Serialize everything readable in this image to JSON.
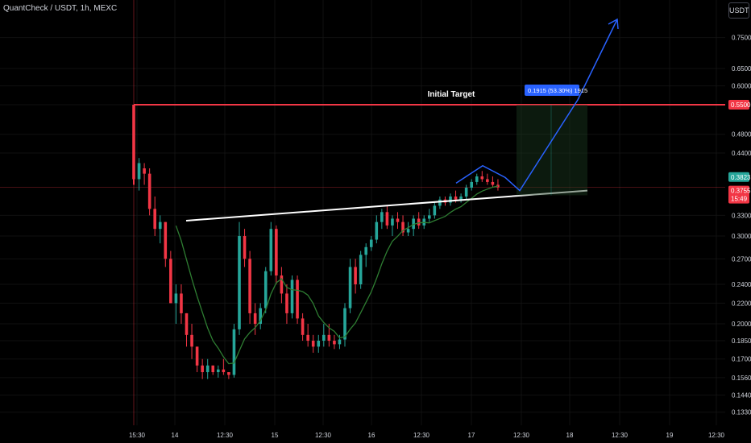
{
  "header": {
    "title": "QuantCheck / USDT, 1h, MEXC",
    "currency": "USDT"
  },
  "colors": {
    "up": "#26a69a",
    "down": "#f23645",
    "ma": "#2e7d32",
    "arrow": "#2962ff",
    "resistance": "#f23645",
    "trendline": "#ffffff",
    "grid": "#111111"
  },
  "annotations": {
    "initial_target_label": "Initial Target",
    "measure_label": "0.1915 (53.30%) 1915",
    "resistance_price": "0.5500",
    "last_price": "0.3823",
    "current_price": "0.3755",
    "countdown": "15:49"
  },
  "chart_data": {
    "type": "candlestick",
    "symbol": "QuantCheck / USDT",
    "interval": "1h",
    "exchange": "MEXC",
    "y_scale": "log",
    "y_ticks": [
      0.75,
      0.65,
      0.6,
      0.55,
      0.48,
      0.44,
      0.33,
      0.3,
      0.27,
      0.24,
      0.22,
      0.2,
      0.185,
      0.17,
      0.156,
      0.144,
      0.133
    ],
    "y_tick_labels": [
      "0.7500",
      "0.6500",
      "0.6000",
      "0.5500",
      "0.4800",
      "0.4400",
      "0.3300",
      "0.3000",
      "0.2700",
      "0.2400",
      "0.2200",
      "0.2000",
      "0.1850",
      "0.1700",
      "0.1560",
      "0.1440",
      "0.1330"
    ],
    "x_tick_labels": [
      "15:30",
      "14",
      "12:30",
      "15",
      "12:30",
      "16",
      "12:30",
      "17",
      "12:30",
      "18",
      "12:30",
      "19",
      "12:30"
    ],
    "candles": [
      [
        0.55,
        0.55,
        0.38,
        0.39
      ],
      [
        0.39,
        0.43,
        0.37,
        0.42
      ],
      [
        0.41,
        0.42,
        0.38,
        0.4
      ],
      [
        0.4,
        0.41,
        0.33,
        0.34
      ],
      [
        0.34,
        0.36,
        0.3,
        0.31
      ],
      [
        0.31,
        0.33,
        0.29,
        0.32
      ],
      [
        0.32,
        0.32,
        0.26,
        0.27
      ],
      [
        0.27,
        0.28,
        0.22,
        0.22
      ],
      [
        0.22,
        0.24,
        0.2,
        0.23
      ],
      [
        0.23,
        0.24,
        0.2,
        0.21
      ],
      [
        0.21,
        0.21,
        0.18,
        0.19
      ],
      [
        0.19,
        0.2,
        0.17,
        0.18
      ],
      [
        0.18,
        0.18,
        0.16,
        0.165
      ],
      [
        0.165,
        0.17,
        0.155,
        0.16
      ],
      [
        0.16,
        0.17,
        0.155,
        0.165
      ],
      [
        0.165,
        0.165,
        0.158,
        0.16
      ],
      [
        0.16,
        0.165,
        0.156,
        0.162
      ],
      [
        0.162,
        0.17,
        0.158,
        0.16
      ],
      [
        0.16,
        0.16,
        0.155,
        0.158
      ],
      [
        0.158,
        0.2,
        0.156,
        0.195
      ],
      [
        0.195,
        0.32,
        0.19,
        0.3
      ],
      [
        0.3,
        0.31,
        0.26,
        0.27
      ],
      [
        0.27,
        0.28,
        0.2,
        0.21
      ],
      [
        0.21,
        0.22,
        0.19,
        0.2
      ],
      [
        0.2,
        0.22,
        0.195,
        0.215
      ],
      [
        0.215,
        0.26,
        0.21,
        0.255
      ],
      [
        0.255,
        0.32,
        0.25,
        0.31
      ],
      [
        0.31,
        0.315,
        0.24,
        0.25
      ],
      [
        0.25,
        0.26,
        0.22,
        0.23
      ],
      [
        0.23,
        0.24,
        0.2,
        0.21
      ],
      [
        0.21,
        0.25,
        0.205,
        0.245
      ],
      [
        0.245,
        0.25,
        0.2,
        0.205
      ],
      [
        0.205,
        0.21,
        0.185,
        0.19
      ],
      [
        0.19,
        0.2,
        0.18,
        0.185
      ],
      [
        0.185,
        0.19,
        0.175,
        0.18
      ],
      [
        0.18,
        0.19,
        0.175,
        0.185
      ],
      [
        0.185,
        0.2,
        0.18,
        0.19
      ],
      [
        0.19,
        0.2,
        0.18,
        0.185
      ],
      [
        0.185,
        0.19,
        0.178,
        0.182
      ],
      [
        0.182,
        0.19,
        0.178,
        0.186
      ],
      [
        0.186,
        0.22,
        0.18,
        0.215
      ],
      [
        0.215,
        0.27,
        0.21,
        0.26
      ],
      [
        0.26,
        0.27,
        0.23,
        0.24
      ],
      [
        0.24,
        0.28,
        0.235,
        0.275
      ],
      [
        0.275,
        0.29,
        0.26,
        0.285
      ],
      [
        0.285,
        0.3,
        0.28,
        0.295
      ],
      [
        0.295,
        0.33,
        0.29,
        0.32
      ],
      [
        0.32,
        0.34,
        0.31,
        0.335
      ],
      [
        0.335,
        0.345,
        0.31,
        0.315
      ],
      [
        0.315,
        0.33,
        0.3,
        0.325
      ],
      [
        0.325,
        0.335,
        0.31,
        0.32
      ],
      [
        0.32,
        0.33,
        0.3,
        0.305
      ],
      [
        0.305,
        0.32,
        0.3,
        0.31
      ],
      [
        0.31,
        0.33,
        0.3,
        0.325
      ],
      [
        0.325,
        0.335,
        0.31,
        0.315
      ],
      [
        0.315,
        0.33,
        0.31,
        0.325
      ],
      [
        0.325,
        0.34,
        0.32,
        0.33
      ],
      [
        0.33,
        0.35,
        0.325,
        0.345
      ],
      [
        0.345,
        0.36,
        0.34,
        0.355
      ],
      [
        0.355,
        0.36,
        0.345,
        0.35
      ],
      [
        0.35,
        0.365,
        0.345,
        0.36
      ],
      [
        0.36,
        0.37,
        0.35,
        0.355
      ],
      [
        0.355,
        0.365,
        0.35,
        0.36
      ],
      [
        0.36,
        0.38,
        0.355,
        0.375
      ],
      [
        0.375,
        0.39,
        0.37,
        0.385
      ],
      [
        0.385,
        0.4,
        0.38,
        0.395
      ],
      [
        0.395,
        0.405,
        0.385,
        0.39
      ],
      [
        0.39,
        0.4,
        0.38,
        0.385
      ],
      [
        0.385,
        0.395,
        0.375,
        0.38
      ],
      [
        0.38,
        0.39,
        0.37,
        0.3755
      ]
    ],
    "ma_period": 9,
    "projection": {
      "resistance": 0.55,
      "trendline": {
        "from": [
          0.322,
          "14"
        ],
        "to": [
          0.37,
          "18"
        ]
      },
      "measure_value": 0.1915,
      "measure_pct": "53.30%"
    }
  }
}
